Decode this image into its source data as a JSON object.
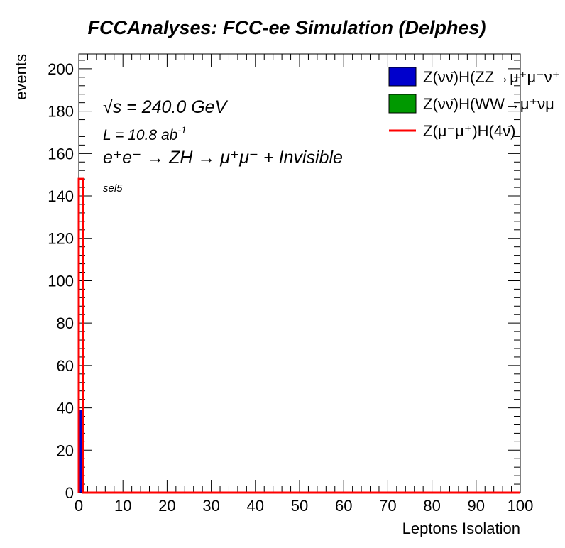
{
  "chart_data": {
    "type": "bar",
    "title": "FCCAnalyses: FCC-ee Simulation (Delphes)",
    "xlabel": "Leptons Isolation",
    "ylabel": "events",
    "xlim": [
      0,
      100
    ],
    "ylim": [
      0,
      207
    ],
    "bin_width": 1,
    "xticks": [
      0,
      10,
      20,
      30,
      40,
      50,
      60,
      70,
      80,
      90,
      100
    ],
    "yticks": [
      0,
      20,
      40,
      60,
      80,
      100,
      120,
      140,
      160,
      180,
      200
    ],
    "grid": false,
    "legend_position": "top-right",
    "annotations": {
      "energy_prefix": "√",
      "energy_var": "s",
      "energy_text": " = 240.0 GeV",
      "lumi_text": "L = 10.8 ab",
      "lumi_exp": "-1",
      "process_text": "e⁺e⁻ → ZH → μ⁺μ⁻ + Invisible",
      "selection": "sel5"
    },
    "series": [
      {
        "name": "Z(νν̄)H(ZZ→μ⁺μ⁻ν⁺",
        "style": "filled",
        "color": "#0000cc",
        "x": [
          0
        ],
        "values": [
          39
        ]
      },
      {
        "name": "Z(νν̄)H(WW→μ⁺νμ",
        "style": "filled",
        "color": "#009900",
        "x": [
          0
        ],
        "values": [
          0
        ]
      },
      {
        "name": "Z(μ⁻μ⁺)H(4ν̄)",
        "style": "line",
        "color": "#ff0000",
        "x": [
          0
        ],
        "values": [
          148
        ]
      }
    ]
  }
}
